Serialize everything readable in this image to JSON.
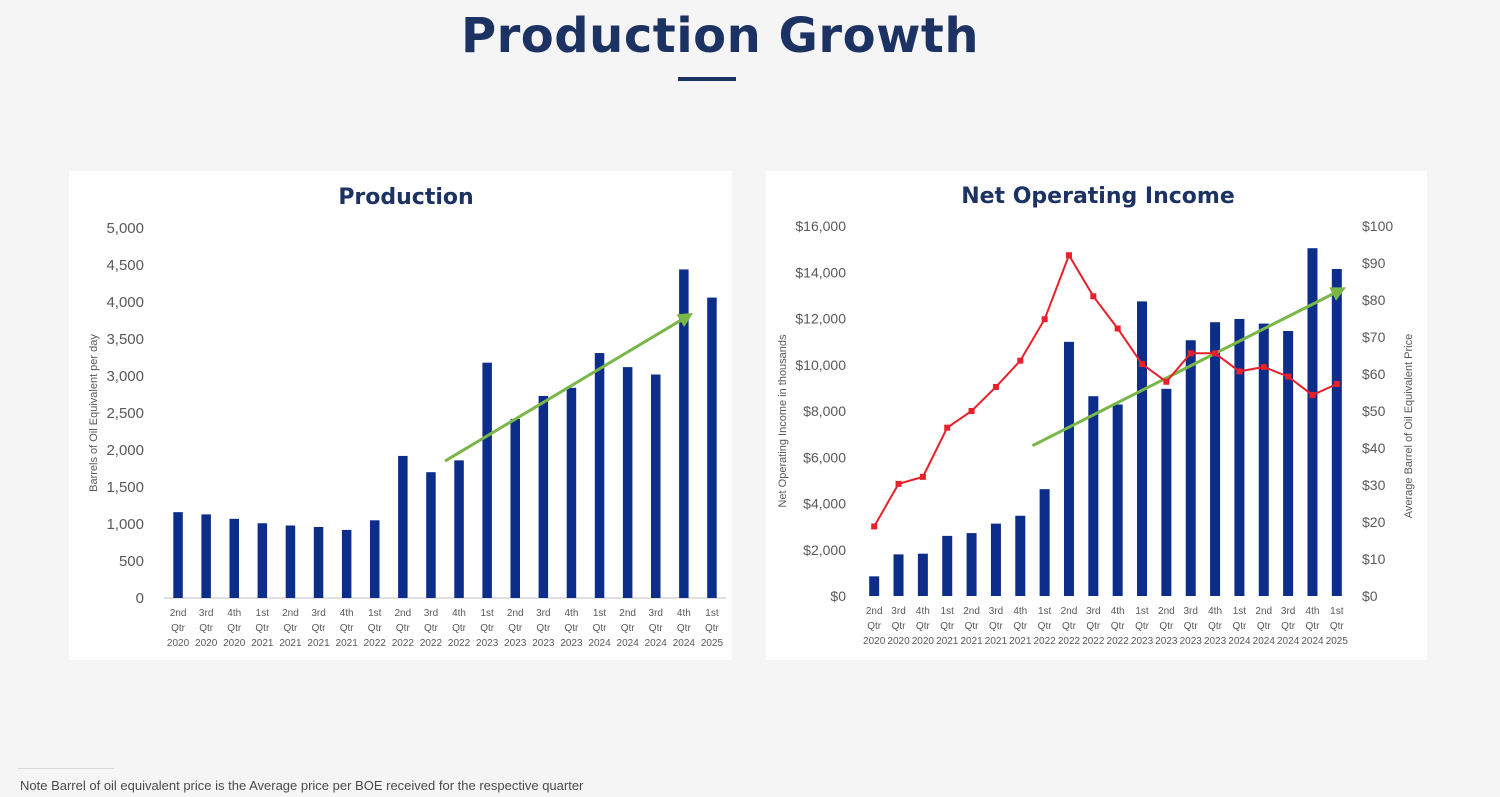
{
  "page": {
    "title": "Production Growth",
    "footnote": "Note Barrel of oil equivalent price is the Average price per BOE received for the respective quarter"
  },
  "colors": {
    "bar": "#0c2e8a",
    "line": "#e8202a",
    "trend": "#7ab648",
    "title": "#1c3263"
  },
  "chart_data": [
    {
      "type": "bar",
      "title": "Production",
      "ylabel": "Barrels of Oil Equivalent per day",
      "ylim": [
        0,
        5000
      ],
      "yticks": [
        "0",
        "500",
        "1,000",
        "1,500",
        "2,000",
        "2,500",
        "3,000",
        "3,500",
        "4,000",
        "4,500",
        "5,000"
      ],
      "categories": [
        [
          "2nd",
          "Qtr",
          "2020"
        ],
        [
          "3rd",
          "Qtr",
          "2020"
        ],
        [
          "4th",
          "Qtr",
          "2020"
        ],
        [
          "1st",
          "Qtr",
          "2021"
        ],
        [
          "2nd",
          "Qtr",
          "2021"
        ],
        [
          "3rd",
          "Qtr",
          "2021"
        ],
        [
          "4th",
          "Qtr",
          "2021"
        ],
        [
          "1st",
          "Qtr",
          "2022"
        ],
        [
          "2nd",
          "Qtr",
          "2022"
        ],
        [
          "3rd",
          "Qtr",
          "2022"
        ],
        [
          "4th",
          "Qtr",
          "2022"
        ],
        [
          "1st",
          "Qtr",
          "2023"
        ],
        [
          "2nd",
          "Qtr",
          "2023"
        ],
        [
          "3rd",
          "Qtr",
          "2023"
        ],
        [
          "4th",
          "Qtr",
          "2023"
        ],
        [
          "1st",
          "Qtr",
          "2024"
        ],
        [
          "2nd",
          "Qtr",
          "2024"
        ],
        [
          "3rd",
          "Qtr",
          "2024"
        ],
        [
          "4th",
          "Qtr",
          "2024"
        ],
        [
          "1st",
          "Qtr",
          "2025"
        ]
      ],
      "values": [
        1160,
        1130,
        1070,
        1010,
        980,
        960,
        920,
        1050,
        1920,
        1700,
        1860,
        3180,
        2420,
        2730,
        2840,
        3310,
        3120,
        3020,
        4440,
        4060
      ],
      "trend_arrow": {
        "from": [
          10,
          1850
        ],
        "to": [
          18.6,
          3800
        ]
      },
      "grid": false,
      "legend": "none"
    },
    {
      "type": "bar+line",
      "title": "Net Operating Income",
      "ylabel": "Net Operating Income in thousands",
      "y2label": "Average Barrel of Oil Equivalent Price",
      "ylim": [
        0,
        16000
      ],
      "yticks": [
        "$0",
        "$2,000",
        "$4,000",
        "$6,000",
        "$8,000",
        "$10,000",
        "$12,000",
        "$14,000",
        "$16,000"
      ],
      "y2lim": [
        0,
        100
      ],
      "y2ticks": [
        "$0",
        "$10",
        "$20",
        "$30",
        "$40",
        "$50",
        "$60",
        "$70",
        "$80",
        "$90",
        "$100"
      ],
      "categories": [
        [
          "2nd",
          "Qtr",
          "2020"
        ],
        [
          "3rd",
          "Qtr",
          "2020"
        ],
        [
          "4th",
          "Qtr",
          "2020"
        ],
        [
          "1st",
          "Qtr",
          "2021"
        ],
        [
          "2nd",
          "Qtr",
          "2021"
        ],
        [
          "3rd",
          "Qtr",
          "2021"
        ],
        [
          "4th",
          "Qtr",
          "2021"
        ],
        [
          "1st",
          "Qtr",
          "2022"
        ],
        [
          "2nd",
          "Qtr",
          "2022"
        ],
        [
          "3rd",
          "Qtr",
          "2022"
        ],
        [
          "4th",
          "Qtr",
          "2022"
        ],
        [
          "1st",
          "Qtr",
          "2023"
        ],
        [
          "2nd",
          "Qtr",
          "2023"
        ],
        [
          "3rd",
          "Qtr",
          "2023"
        ],
        [
          "4th",
          "Qtr",
          "2023"
        ],
        [
          "1st",
          "Qtr",
          "2024"
        ],
        [
          "2nd",
          "Qtr",
          "2024"
        ],
        [
          "3rd",
          "Qtr",
          "2024"
        ],
        [
          "4th",
          "Qtr",
          "2024"
        ],
        [
          "1st",
          "Qtr",
          "2025"
        ]
      ],
      "bar_values": [
        850,
        1800,
        1830,
        2600,
        2720,
        3130,
        3470,
        4620,
        10990,
        8640,
        8280,
        12740,
        8960,
        11060,
        11840,
        11980,
        11780,
        11460,
        15040,
        14140
      ],
      "line_values": [
        18.8,
        30.3,
        32.2,
        45.5,
        50.0,
        56.5,
        63.6,
        74.8,
        92.1,
        81.0,
        72.3,
        62.7,
        57.9,
        65.6,
        65.6,
        60.7,
        61.9,
        59.3,
        54.3,
        57.3
      ],
      "trend_arrow": {
        "from": [
          7,
          6500
        ],
        "to": [
          19.6,
          13200
        ]
      },
      "grid": false,
      "legend": "none"
    }
  ]
}
